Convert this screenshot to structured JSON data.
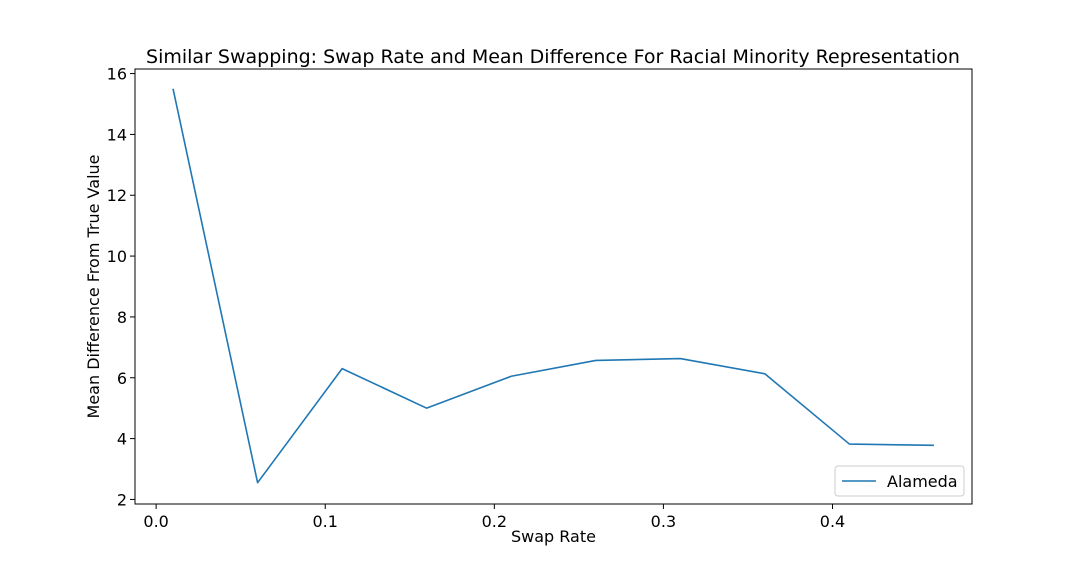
{
  "chart_data": {
    "type": "line",
    "title": "Similar Swapping: Swap Rate and Mean Difference For Racial Minority Representation",
    "xlabel": "Swap Rate",
    "ylabel": "Mean Difference From True Value",
    "xlim": [
      -0.0125,
      0.4825
    ],
    "ylim": [
      1.85,
      16.15
    ],
    "x_ticks": [
      0.0,
      0.1,
      0.2,
      0.3,
      0.4
    ],
    "x_tick_labels": [
      "0.0",
      "0.1",
      "0.2",
      "0.3",
      "0.4"
    ],
    "y_ticks": [
      2,
      4,
      6,
      8,
      10,
      12,
      14,
      16
    ],
    "y_tick_labels": [
      "2",
      "4",
      "6",
      "8",
      "10",
      "12",
      "14",
      "16"
    ],
    "grid": false,
    "legend_position": "lower-right",
    "series": [
      {
        "name": "Alameda",
        "color": "#1f77b4",
        "x": [
          0.01,
          0.06,
          0.11,
          0.16,
          0.21,
          0.26,
          0.31,
          0.36,
          0.41,
          0.46
        ],
        "y": [
          15.5,
          2.55,
          6.3,
          5.0,
          6.05,
          6.57,
          6.63,
          6.13,
          3.82,
          3.78
        ]
      }
    ]
  }
}
